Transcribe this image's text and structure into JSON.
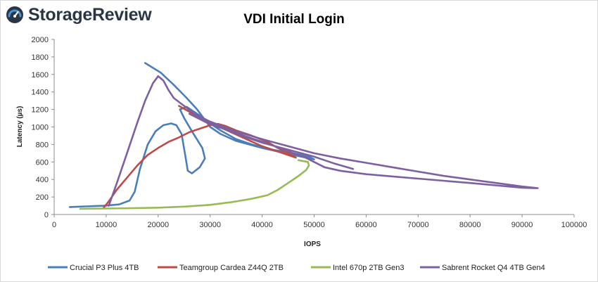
{
  "brand": {
    "name": "StorageReview",
    "icon": "storagereview-gauge-logo",
    "color": "#2b3645",
    "accent": "#4a8fd6"
  },
  "chart_data": {
    "type": "line",
    "title": "VDI Initial Login",
    "xlabel": "IOPS",
    "ylabel": "Latency (µs)",
    "xlim": [
      0,
      100000
    ],
    "ylim": [
      0,
      2000
    ],
    "x_ticks": [
      0,
      10000,
      20000,
      30000,
      40000,
      50000,
      60000,
      70000,
      80000,
      90000,
      100000
    ],
    "y_ticks": [
      0,
      200,
      400,
      600,
      800,
      1000,
      1200,
      1400,
      1600,
      1800,
      2000
    ],
    "grid": false,
    "legend": "bottom",
    "series": [
      {
        "name": "Crucial P3 Plus 4TB",
        "color": "#4a7ebb",
        "points": [
          [
            3000,
            85
          ],
          [
            6000,
            92
          ],
          [
            9500,
            100
          ],
          [
            12500,
            115
          ],
          [
            14500,
            160
          ],
          [
            15500,
            260
          ],
          [
            16500,
            520
          ],
          [
            18000,
            800
          ],
          [
            19500,
            950
          ],
          [
            21000,
            1020
          ],
          [
            22500,
            1040
          ],
          [
            23500,
            1020
          ],
          [
            24500,
            920
          ],
          [
            25200,
            680
          ],
          [
            25700,
            500
          ],
          [
            26500,
            470
          ],
          [
            28000,
            540
          ],
          [
            29000,
            640
          ],
          [
            28500,
            760
          ],
          [
            26500,
            950
          ],
          [
            25000,
            1100
          ],
          [
            24200,
            1200
          ],
          [
            25500,
            1230
          ],
          [
            28000,
            1130
          ],
          [
            30000,
            1040
          ],
          [
            32000,
            960
          ],
          [
            35000,
            860
          ],
          [
            38000,
            800
          ],
          [
            42000,
            740
          ],
          [
            46000,
            700
          ],
          [
            49000,
            660
          ],
          [
            50000,
            630
          ],
          [
            46000,
            680
          ],
          [
            40000,
            760
          ],
          [
            35000,
            840
          ],
          [
            32000,
            920
          ],
          [
            30000,
            1000
          ],
          [
            29000,
            1080
          ],
          [
            27500,
            1200
          ],
          [
            25500,
            1330
          ],
          [
            23000,
            1480
          ],
          [
            20500,
            1620
          ],
          [
            17500,
            1730
          ]
        ]
      },
      {
        "name": "Teamgroup Cardea Z44Q 2TB",
        "color": "#be4b48",
        "points": [
          [
            9500,
            75
          ],
          [
            10500,
            150
          ],
          [
            12000,
            280
          ],
          [
            14000,
            420
          ],
          [
            16000,
            560
          ],
          [
            18000,
            680
          ],
          [
            20000,
            760
          ],
          [
            22000,
            830
          ],
          [
            24000,
            880
          ],
          [
            26000,
            940
          ],
          [
            28000,
            980
          ],
          [
            30000,
            1020
          ],
          [
            31500,
            1035
          ],
          [
            33000,
            1010
          ],
          [
            35000,
            960
          ],
          [
            38000,
            900
          ],
          [
            41000,
            830
          ],
          [
            43000,
            760
          ],
          [
            45000,
            700
          ],
          [
            46500,
            650
          ],
          [
            44000,
            700
          ],
          [
            40000,
            780
          ],
          [
            37000,
            860
          ],
          [
            34000,
            940
          ],
          [
            31000,
            1020
          ],
          [
            29000,
            1080
          ],
          [
            27000,
            1140
          ],
          [
            25500,
            1190
          ],
          [
            24000,
            1240
          ]
        ]
      },
      {
        "name": "Intel 670p 2TB Gen3",
        "color": "#98b954",
        "points": [
          [
            5000,
            65
          ],
          [
            10000,
            68
          ],
          [
            15000,
            72
          ],
          [
            20000,
            78
          ],
          [
            25000,
            90
          ],
          [
            30000,
            110
          ],
          [
            34000,
            140
          ],
          [
            38000,
            180
          ],
          [
            41000,
            220
          ],
          [
            43000,
            280
          ],
          [
            45000,
            360
          ],
          [
            47000,
            440
          ],
          [
            48500,
            510
          ],
          [
            49000,
            560
          ],
          [
            48800,
            600
          ],
          [
            47000,
            620
          ]
        ]
      },
      {
        "name": "Sabrent Rocket Q4 4TB Gen4",
        "color": "#7d60a0",
        "points": [
          [
            10500,
            100
          ],
          [
            12000,
            350
          ],
          [
            14000,
            700
          ],
          [
            16000,
            1050
          ],
          [
            17500,
            1300
          ],
          [
            19000,
            1500
          ],
          [
            20000,
            1580
          ],
          [
            21000,
            1530
          ],
          [
            22000,
            1420
          ],
          [
            23000,
            1330
          ],
          [
            25000,
            1240
          ],
          [
            27000,
            1150
          ],
          [
            30000,
            1060
          ],
          [
            35000,
            950
          ],
          [
            40000,
            860
          ],
          [
            45000,
            780
          ],
          [
            50000,
            700
          ],
          [
            55000,
            640
          ],
          [
            60000,
            590
          ],
          [
            65000,
            540
          ],
          [
            70000,
            490
          ],
          [
            75000,
            440
          ],
          [
            80000,
            400
          ],
          [
            85000,
            360
          ],
          [
            90000,
            320
          ],
          [
            93000,
            300
          ],
          [
            90000,
            305
          ],
          [
            80000,
            360
          ],
          [
            70000,
            410
          ],
          [
            60000,
            460
          ],
          [
            55000,
            500
          ],
          [
            52000,
            540
          ],
          [
            50000,
            600
          ],
          [
            48000,
            660
          ],
          [
            45000,
            720
          ],
          [
            42000,
            790
          ],
          [
            38000,
            870
          ],
          [
            34000,
            950
          ],
          [
            30000,
            1030
          ],
          [
            28000,
            1090
          ],
          [
            26000,
            1150
          ],
          [
            28000,
            1100
          ],
          [
            32000,
            1000
          ],
          [
            36000,
            900
          ],
          [
            40000,
            820
          ],
          [
            45000,
            740
          ],
          [
            50000,
            660
          ],
          [
            54000,
            580
          ],
          [
            57500,
            520
          ]
        ]
      }
    ]
  }
}
